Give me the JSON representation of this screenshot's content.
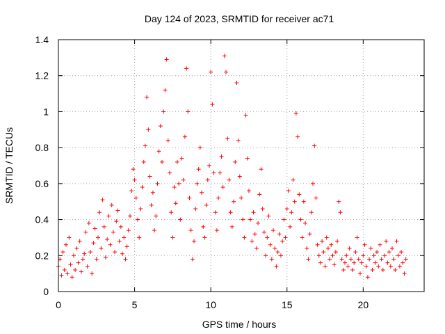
{
  "chart_data": {
    "type": "scatter",
    "title": "Day 124 of 2023, SRMTID for receiver ac71",
    "xlabel": "GPS time / hours",
    "ylabel": "SRMTID / TECUs",
    "xlim": [
      0,
      24
    ],
    "ylim": [
      0,
      1.4
    ],
    "xticks": [
      0,
      5,
      10,
      15,
      20
    ],
    "xtick_labels": [
      "0",
      "5",
      "10",
      "15",
      "20"
    ],
    "yticks": [
      0,
      0.2,
      0.4,
      0.6,
      0.8,
      1.0,
      1.2,
      1.4
    ],
    "ytick_labels": [
      "0",
      "0.2",
      "0.4",
      "0.6",
      "0.8",
      "1",
      "1.2",
      "1.4"
    ],
    "grid": true,
    "marker": "+",
    "marker_color": "#ff0000",
    "series": [
      {
        "name": "ac71",
        "points": [
          [
            0.0,
            0.14
          ],
          [
            0.1,
            0.18
          ],
          [
            0.2,
            0.09
          ],
          [
            0.3,
            0.22
          ],
          [
            0.4,
            0.12
          ],
          [
            0.5,
            0.26
          ],
          [
            0.6,
            0.1
          ],
          [
            0.7,
            0.3
          ],
          [
            0.8,
            0.15
          ],
          [
            0.9,
            0.08
          ],
          [
            1.0,
            0.2
          ],
          [
            1.1,
            0.12
          ],
          [
            1.2,
            0.24
          ],
          [
            1.3,
            0.16
          ],
          [
            1.4,
            0.28
          ],
          [
            1.5,
            0.11
          ],
          [
            1.6,
            0.18
          ],
          [
            1.7,
            0.21
          ],
          [
            1.8,
            0.33
          ],
          [
            1.9,
            0.14
          ],
          [
            2.0,
            0.38
          ],
          [
            2.1,
            0.22
          ],
          [
            2.2,
            0.1
          ],
          [
            2.3,
            0.27
          ],
          [
            2.4,
            0.35
          ],
          [
            2.5,
            0.18
          ],
          [
            2.6,
            0.3
          ],
          [
            2.7,
            0.44
          ],
          [
            2.8,
            0.24
          ],
          [
            2.9,
            0.51
          ],
          [
            3.0,
            0.36
          ],
          [
            3.1,
            0.19
          ],
          [
            3.2,
            0.29
          ],
          [
            3.3,
            0.42
          ],
          [
            3.4,
            0.26
          ],
          [
            3.5,
            0.48
          ],
          [
            3.6,
            0.33
          ],
          [
            3.7,
            0.22
          ],
          [
            3.8,
            0.39
          ],
          [
            3.9,
            0.45
          ],
          [
            4.0,
            0.28
          ],
          [
            4.1,
            0.36
          ],
          [
            4.2,
            0.21
          ],
          [
            4.3,
            0.3
          ],
          [
            4.4,
            0.18
          ],
          [
            4.5,
            0.25
          ],
          [
            4.6,
            0.34
          ],
          [
            4.7,
            0.42
          ],
          [
            4.8,
            0.56
          ],
          [
            4.9,
            0.68
          ],
          [
            5.0,
            0.62
          ],
          [
            5.1,
            0.52
          ],
          [
            5.2,
            0.4
          ],
          [
            5.3,
            0.3
          ],
          [
            5.4,
            0.46
          ],
          [
            5.5,
            0.58
          ],
          [
            5.6,
            0.72
          ],
          [
            5.7,
            0.81
          ],
          [
            5.8,
            1.08
          ],
          [
            5.9,
            0.9
          ],
          [
            6.0,
            0.64
          ],
          [
            6.1,
            0.48
          ],
          [
            6.2,
            0.55
          ],
          [
            6.3,
            0.34
          ],
          [
            6.4,
            0.42
          ],
          [
            6.5,
            0.6
          ],
          [
            6.6,
            0.78
          ],
          [
            6.7,
            0.92
          ],
          [
            6.8,
            0.72
          ],
          [
            6.9,
            1.0
          ],
          [
            7.0,
            1.12
          ],
          [
            7.1,
            1.29
          ],
          [
            7.2,
            0.84
          ],
          [
            7.3,
            0.66
          ],
          [
            7.4,
            0.44
          ],
          [
            7.5,
            0.3
          ],
          [
            7.6,
            0.58
          ],
          [
            7.7,
            0.49
          ],
          [
            7.8,
            0.72
          ],
          [
            7.9,
            0.6
          ],
          [
            8.0,
            0.4
          ],
          [
            8.1,
            0.74
          ],
          [
            8.2,
            0.62
          ],
          [
            8.3,
            0.86
          ],
          [
            8.4,
            1.24
          ],
          [
            8.5,
            1.0
          ],
          [
            8.6,
            0.52
          ],
          [
            8.7,
            0.34
          ],
          [
            8.8,
            0.18
          ],
          [
            8.9,
            0.28
          ],
          [
            9.0,
            0.46
          ],
          [
            9.1,
            0.6
          ],
          [
            9.2,
            0.68
          ],
          [
            9.3,
            0.8
          ],
          [
            9.4,
            0.55
          ],
          [
            9.5,
            0.36
          ],
          [
            9.6,
            0.3
          ],
          [
            9.7,
            0.48
          ],
          [
            9.8,
            0.62
          ],
          [
            9.9,
            0.7
          ],
          [
            10.0,
            1.22
          ],
          [
            10.1,
            1.04
          ],
          [
            10.2,
            0.66
          ],
          [
            10.3,
            0.44
          ],
          [
            10.4,
            0.34
          ],
          [
            10.5,
            0.52
          ],
          [
            10.6,
            0.66
          ],
          [
            10.7,
            0.75
          ],
          [
            10.8,
            0.58
          ],
          [
            10.9,
            1.31
          ],
          [
            11.0,
            1.22
          ],
          [
            11.1,
            0.85
          ],
          [
            11.2,
            0.62
          ],
          [
            11.3,
            0.44
          ],
          [
            11.4,
            0.36
          ],
          [
            11.5,
            0.5
          ],
          [
            11.6,
            0.72
          ],
          [
            11.7,
            1.16
          ],
          [
            11.8,
            0.84
          ],
          [
            11.9,
            0.64
          ],
          [
            12.0,
            0.52
          ],
          [
            12.1,
            0.4
          ],
          [
            12.2,
            0.3
          ],
          [
            12.3,
            0.98
          ],
          [
            12.4,
            0.74
          ],
          [
            12.5,
            0.56
          ],
          [
            12.6,
            0.4
          ],
          [
            12.7,
            0.28
          ],
          [
            12.8,
            0.44
          ],
          [
            12.9,
            0.32
          ],
          [
            13.0,
            0.24
          ],
          [
            13.1,
            0.38
          ],
          [
            13.2,
            0.54
          ],
          [
            13.3,
            0.68
          ],
          [
            13.4,
            0.46
          ],
          [
            13.5,
            0.33
          ],
          [
            13.6,
            0.2
          ],
          [
            13.7,
            0.3
          ],
          [
            13.8,
            0.42
          ],
          [
            13.9,
            0.26
          ],
          [
            14.0,
            0.18
          ],
          [
            14.1,
            0.34
          ],
          [
            14.2,
            0.24
          ],
          [
            14.3,
            0.14
          ],
          [
            14.4,
            0.22
          ],
          [
            14.5,
            0.32
          ],
          [
            14.6,
            0.2
          ],
          [
            14.7,
            0.28
          ],
          [
            14.8,
            0.4
          ],
          [
            14.9,
            0.3
          ],
          [
            15.0,
            0.46
          ],
          [
            15.1,
            0.56
          ],
          [
            15.2,
            0.36
          ],
          [
            15.3,
            0.44
          ],
          [
            15.4,
            0.62
          ],
          [
            15.5,
            0.5
          ],
          [
            15.6,
            0.99
          ],
          [
            15.7,
            0.86
          ],
          [
            15.8,
            0.54
          ],
          [
            15.9,
            0.4
          ],
          [
            16.0,
            0.3
          ],
          [
            16.1,
            0.5
          ],
          [
            16.2,
            0.38
          ],
          [
            16.3,
            0.24
          ],
          [
            16.4,
            0.18
          ],
          [
            16.5,
            0.32
          ],
          [
            16.6,
            0.44
          ],
          [
            16.7,
            0.6
          ],
          [
            16.8,
            0.81
          ],
          [
            16.9,
            0.52
          ],
          [
            17.0,
            0.26
          ],
          [
            17.1,
            0.2
          ],
          [
            17.2,
            0.16
          ],
          [
            17.3,
            0.28
          ],
          [
            17.4,
            0.22
          ],
          [
            17.5,
            0.14
          ],
          [
            17.6,
            0.3
          ],
          [
            17.7,
            0.24
          ],
          [
            17.8,
            0.18
          ],
          [
            17.9,
            0.26
          ],
          [
            18.0,
            0.2
          ],
          [
            18.1,
            0.15
          ],
          [
            18.2,
            0.22
          ],
          [
            18.3,
            0.28
          ],
          [
            18.4,
            0.5
          ],
          [
            18.5,
            0.44
          ],
          [
            18.6,
            0.18
          ],
          [
            18.7,
            0.12
          ],
          [
            18.8,
            0.16
          ],
          [
            18.9,
            0.2
          ],
          [
            19.0,
            0.14
          ],
          [
            19.1,
            0.24
          ],
          [
            19.2,
            0.18
          ],
          [
            19.3,
            0.12
          ],
          [
            19.4,
            0.16
          ],
          [
            19.5,
            0.22
          ],
          [
            19.6,
            0.3
          ],
          [
            19.7,
            0.18
          ],
          [
            19.8,
            0.1
          ],
          [
            19.9,
            0.16
          ],
          [
            20.0,
            0.2
          ],
          [
            20.1,
            0.26
          ],
          [
            20.2,
            0.14
          ],
          [
            20.3,
            0.08
          ],
          [
            20.4,
            0.18
          ],
          [
            20.5,
            0.24
          ],
          [
            20.6,
            0.12
          ],
          [
            20.7,
            0.2
          ],
          [
            20.8,
            0.16
          ],
          [
            20.9,
            0.22
          ],
          [
            21.0,
            0.14
          ],
          [
            21.1,
            0.26
          ],
          [
            21.2,
            0.18
          ],
          [
            21.3,
            0.12
          ],
          [
            21.4,
            0.2
          ],
          [
            21.5,
            0.28
          ],
          [
            21.6,
            0.16
          ],
          [
            21.7,
            0.22
          ],
          [
            21.8,
            0.14
          ],
          [
            21.9,
            0.24
          ],
          [
            22.0,
            0.18
          ],
          [
            22.1,
            0.12
          ],
          [
            22.2,
            0.28
          ],
          [
            22.3,
            0.2
          ],
          [
            22.4,
            0.14
          ],
          [
            22.5,
            0.22
          ],
          [
            22.6,
            0.16
          ],
          [
            22.7,
            0.1
          ],
          [
            22.8,
            0.18
          ]
        ]
      }
    ]
  }
}
